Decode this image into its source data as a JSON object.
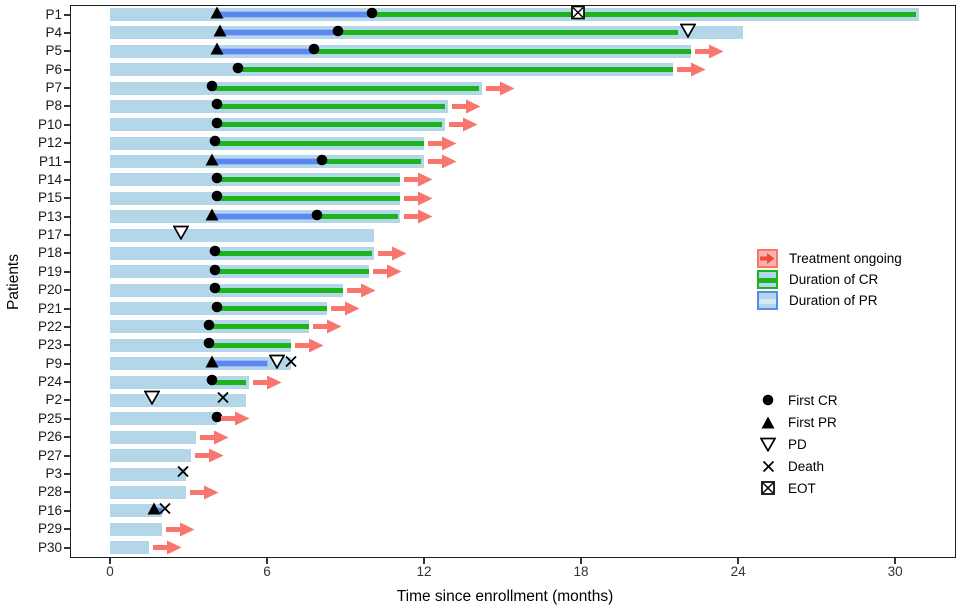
{
  "chart_data": {
    "type": "bar",
    "variant": "swimmer-plot",
    "title": "",
    "xlabel": "Time since enrollment (months)",
    "ylabel": "Patients",
    "x_ticks": [
      0,
      6,
      12,
      18,
      24,
      30
    ],
    "xlim": [
      -1.5,
      32.3
    ],
    "grid": false,
    "legend_position": "right-inside",
    "colors": {
      "bar_total": "#b3d7e8",
      "duration_cr": "#1db31d",
      "duration_pr": "#5b87f0",
      "ongoing_arrow": "#f8766d",
      "marker": "#000000",
      "panel_border": "#1f1f1f",
      "tick_text": "#333333"
    },
    "segment_legend": [
      {
        "key": "ongoing",
        "label": "Treatment ongoing"
      },
      {
        "key": "cr",
        "label": "Duration of CR"
      },
      {
        "key": "pr",
        "label": "Duration of PR"
      }
    ],
    "marker_legend": [
      {
        "key": "first_cr",
        "label": "First CR"
      },
      {
        "key": "first_pr",
        "label": "First PR"
      },
      {
        "key": "pd",
        "label": "PD"
      },
      {
        "key": "death",
        "label": "Death"
      },
      {
        "key": "eot",
        "label": "EOT"
      }
    ],
    "patients": [
      {
        "id": "P1",
        "bar_end": 30.9,
        "pr": [
          4.1,
          10.0
        ],
        "cr": [
          10.0,
          30.8
        ],
        "markers": [
          [
            "first_pr",
            4.1
          ],
          [
            "first_cr",
            10.0
          ],
          [
            "eot",
            17.9
          ]
        ],
        "ongoing": false
      },
      {
        "id": "P4",
        "bar_end": 24.2,
        "pr": [
          4.2,
          8.7
        ],
        "cr": [
          8.7,
          21.7
        ],
        "markers": [
          [
            "first_pr",
            4.2
          ],
          [
            "first_cr",
            8.7
          ],
          [
            "pd",
            22.1
          ]
        ],
        "ongoing": false
      },
      {
        "id": "P5",
        "bar_end": 22.2,
        "pr": [
          4.1,
          7.8
        ],
        "cr": [
          7.8,
          22.2
        ],
        "markers": [
          [
            "first_pr",
            4.1
          ],
          [
            "first_cr",
            7.8
          ]
        ],
        "ongoing": true
      },
      {
        "id": "P6",
        "bar_end": 21.5,
        "pr": null,
        "cr": [
          4.9,
          21.5
        ],
        "markers": [
          [
            "first_cr",
            4.9
          ]
        ],
        "ongoing": true
      },
      {
        "id": "P7",
        "bar_end": 14.2,
        "pr": null,
        "cr": [
          3.9,
          14.1
        ],
        "markers": [
          [
            "first_cr",
            3.9
          ]
        ],
        "ongoing": true
      },
      {
        "id": "P8",
        "bar_end": 12.9,
        "pr": null,
        "cr": [
          4.1,
          12.8
        ],
        "markers": [
          [
            "first_cr",
            4.1
          ]
        ],
        "ongoing": true
      },
      {
        "id": "P10",
        "bar_end": 12.8,
        "pr": null,
        "cr": [
          4.1,
          12.7
        ],
        "markers": [
          [
            "first_cr",
            4.1
          ]
        ],
        "ongoing": true
      },
      {
        "id": "P12",
        "bar_end": 12.0,
        "pr": null,
        "cr": [
          4.0,
          12.0
        ],
        "markers": [
          [
            "first_cr",
            4.0
          ]
        ],
        "ongoing": true
      },
      {
        "id": "P11",
        "bar_end": 12.0,
        "pr": [
          3.9,
          8.1
        ],
        "cr": [
          8.1,
          11.9
        ],
        "markers": [
          [
            "first_pr",
            3.9
          ],
          [
            "first_cr",
            8.1
          ]
        ],
        "ongoing": true
      },
      {
        "id": "P14",
        "bar_end": 11.1,
        "pr": null,
        "cr": [
          4.1,
          11.1
        ],
        "markers": [
          [
            "first_cr",
            4.1
          ]
        ],
        "ongoing": true
      },
      {
        "id": "P15",
        "bar_end": 11.1,
        "pr": null,
        "cr": [
          4.1,
          11.1
        ],
        "markers": [
          [
            "first_cr",
            4.1
          ]
        ],
        "ongoing": true
      },
      {
        "id": "P13",
        "bar_end": 11.1,
        "pr": [
          3.9,
          7.9
        ],
        "cr": [
          7.9,
          11.0
        ],
        "markers": [
          [
            "first_pr",
            3.9
          ],
          [
            "first_cr",
            7.9
          ]
        ],
        "ongoing": true
      },
      {
        "id": "P17",
        "bar_end": 10.1,
        "pr": null,
        "cr": null,
        "markers": [
          [
            "pd",
            2.7
          ]
        ],
        "ongoing": false
      },
      {
        "id": "P18",
        "bar_end": 10.1,
        "pr": null,
        "cr": [
          4.0,
          10.0
        ],
        "markers": [
          [
            "first_cr",
            4.0
          ]
        ],
        "ongoing": true
      },
      {
        "id": "P19",
        "bar_end": 9.9,
        "pr": null,
        "cr": [
          4.0,
          9.9
        ],
        "markers": [
          [
            "first_cr",
            4.0
          ]
        ],
        "ongoing": true
      },
      {
        "id": "P20",
        "bar_end": 8.9,
        "pr": null,
        "cr": [
          4.0,
          8.9
        ],
        "markers": [
          [
            "first_cr",
            4.0
          ]
        ],
        "ongoing": true
      },
      {
        "id": "P21",
        "bar_end": 8.3,
        "pr": null,
        "cr": [
          4.1,
          8.3
        ],
        "markers": [
          [
            "first_cr",
            4.1
          ]
        ],
        "ongoing": true
      },
      {
        "id": "P22",
        "bar_end": 7.6,
        "pr": null,
        "cr": [
          3.8,
          7.6
        ],
        "markers": [
          [
            "first_cr",
            3.8
          ]
        ],
        "ongoing": true
      },
      {
        "id": "P23",
        "bar_end": 6.9,
        "pr": null,
        "cr": [
          3.8,
          6.9
        ],
        "markers": [
          [
            "first_cr",
            3.8
          ]
        ],
        "ongoing": true
      },
      {
        "id": "P9",
        "bar_end": 6.9,
        "pr": [
          3.9,
          6.0
        ],
        "cr": null,
        "markers": [
          [
            "first_pr",
            3.9
          ],
          [
            "pd",
            6.4
          ],
          [
            "death",
            6.9
          ]
        ],
        "ongoing": false
      },
      {
        "id": "P24",
        "bar_end": 5.3,
        "pr": null,
        "cr": [
          3.9,
          5.2
        ],
        "markers": [
          [
            "first_cr",
            3.9
          ]
        ],
        "ongoing": true
      },
      {
        "id": "P2",
        "bar_end": 5.2,
        "pr": null,
        "cr": null,
        "markers": [
          [
            "pd",
            1.6
          ],
          [
            "death",
            4.3
          ]
        ],
        "ongoing": false
      },
      {
        "id": "P25",
        "bar_end": 4.1,
        "pr": null,
        "cr": null,
        "markers": [
          [
            "first_cr",
            4.1
          ]
        ],
        "ongoing": true
      },
      {
        "id": "P26",
        "bar_end": 3.3,
        "pr": null,
        "cr": null,
        "markers": [],
        "ongoing": true
      },
      {
        "id": "P27",
        "bar_end": 3.1,
        "pr": null,
        "cr": null,
        "markers": [],
        "ongoing": true
      },
      {
        "id": "P3",
        "bar_end": 2.9,
        "pr": null,
        "cr": null,
        "markers": [
          [
            "death",
            2.8
          ]
        ],
        "ongoing": false
      },
      {
        "id": "P28",
        "bar_end": 2.9,
        "pr": null,
        "cr": null,
        "markers": [],
        "ongoing": true
      },
      {
        "id": "P16",
        "bar_end": 2.0,
        "pr": [
          1.7,
          2.0
        ],
        "cr": null,
        "markers": [
          [
            "first_pr",
            1.7
          ],
          [
            "death",
            2.1
          ]
        ],
        "ongoing": false
      },
      {
        "id": "P29",
        "bar_end": 2.0,
        "pr": null,
        "cr": null,
        "markers": [],
        "ongoing": true
      },
      {
        "id": "P30",
        "bar_end": 1.5,
        "pr": null,
        "cr": null,
        "markers": [],
        "ongoing": true
      }
    ]
  }
}
